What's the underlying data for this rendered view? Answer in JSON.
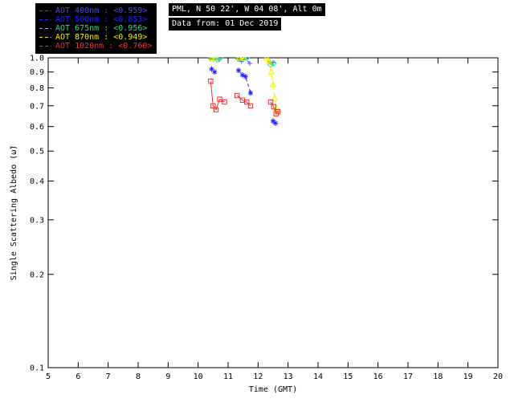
{
  "header": {
    "station": "PML, N 50 22', W 04 08', Alt 0m",
    "date": "Data from: 01 Dec 2019"
  },
  "legend": {
    "items": [
      {
        "label": "AOT  400nm : <0.959>",
        "color": "#4a4ae0",
        "wavelength": "400nm",
        "mean": 0.959
      },
      {
        "label": "AOT  500nm : <0.853>",
        "color": "#2424ff",
        "wavelength": "500nm",
        "mean": 0.853
      },
      {
        "label": "AOT  675nm : <0.956>",
        "color": "#2edc86",
        "wavelength": "675nm",
        "mean": 0.956
      },
      {
        "label": "AOT  870nm : <0.949>",
        "color": "#f0f000",
        "wavelength": "870nm",
        "mean": 0.949
      },
      {
        "label": "AOT 1020nm : <0.760>",
        "color": "#f03030",
        "wavelength": "1020nm",
        "mean": 0.76
      }
    ]
  },
  "chart_data": {
    "type": "line",
    "title": "",
    "xlabel": "Time (GMT)",
    "ylabel": "Single Scattering Albedo (ω̃)",
    "xlim": [
      5,
      20
    ],
    "ylim": [
      0.1,
      1.0
    ],
    "yscale": "log",
    "grid": false,
    "axis_color": "#000000",
    "background": "#ffffff",
    "x_ticks": [
      5,
      6,
      7,
      8,
      9,
      10,
      11,
      12,
      13,
      14,
      15,
      16,
      17,
      18,
      19,
      20
    ],
    "y_ticks": [
      1.0,
      0.9,
      0.8,
      0.7,
      0.6,
      0.5,
      0.4,
      0.3,
      0.2,
      0.1
    ],
    "series": [
      {
        "name": "AOT 400nm",
        "key": "aot-400nm",
        "mean": 0.959,
        "color": "#4a4ae0",
        "marker": "plus",
        "dash": "4,3",
        "points": [
          [
            10.4,
            0.995
          ],
          [
            10.5,
            0.99
          ],
          [
            10.58,
            1.0
          ],
          [
            10.7,
            0.985
          ],
          [
            11.32,
            0.99
          ],
          [
            11.45,
            0.975
          ],
          [
            11.58,
            0.995
          ],
          [
            11.72,
            0.96
          ],
          [
            12.4,
            0.97
          ],
          [
            12.5,
            0.965
          ]
        ]
      },
      {
        "name": "AOT 500nm",
        "key": "aot-500nm",
        "mean": 0.853,
        "color": "#2424ff",
        "marker": "asterisk",
        "dash": "4,3",
        "points": [
          [
            10.45,
            0.92
          ],
          [
            10.55,
            0.9
          ],
          [
            11.35,
            0.91
          ],
          [
            11.48,
            0.88
          ],
          [
            11.58,
            0.87
          ],
          [
            11.75,
            0.77
          ],
          [
            12.5,
            0.625
          ],
          [
            12.58,
            0.615
          ]
        ]
      },
      {
        "name": "AOT 675nm",
        "key": "aot-675nm",
        "mean": 0.956,
        "color": "#2edc86",
        "marker": "diamond",
        "dash": "4,3",
        "points": [
          [
            10.42,
            1.0
          ],
          [
            10.52,
            0.995
          ],
          [
            10.62,
            0.99
          ],
          [
            10.72,
            1.0
          ],
          [
            11.35,
            0.995
          ],
          [
            11.5,
            0.99
          ],
          [
            11.62,
            1.0
          ],
          [
            12.42,
            0.95
          ],
          [
            12.52,
            0.96
          ]
        ]
      },
      {
        "name": "AOT 870nm",
        "key": "aot-870nm",
        "mean": 0.949,
        "color": "#f0f000",
        "marker": "triangle",
        "dash": "7,4",
        "points": [
          [
            10.45,
            1.0
          ],
          [
            10.58,
            0.995
          ],
          [
            11.38,
            1.0
          ],
          [
            11.55,
            0.995
          ],
          [
            12.28,
            1.0
          ],
          [
            12.36,
            0.975
          ],
          [
            12.44,
            0.9
          ],
          [
            12.5,
            0.82
          ],
          [
            12.56,
            0.74
          ],
          [
            12.62,
            0.69
          ],
          [
            12.66,
            0.67
          ]
        ]
      },
      {
        "name": "AOT 1020nm",
        "key": "aot-1020nm",
        "mean": 0.76,
        "color": "#f03030",
        "marker": "square",
        "dash": "",
        "points": [
          [
            10.42,
            0.84
          ],
          [
            10.5,
            0.7
          ],
          [
            10.6,
            0.68
          ],
          [
            10.72,
            0.735
          ],
          [
            10.88,
            0.72
          ],
          [
            11.3,
            0.755
          ],
          [
            11.48,
            0.73
          ],
          [
            11.62,
            0.72
          ],
          [
            11.75,
            0.7
          ],
          [
            12.42,
            0.72
          ],
          [
            12.52,
            0.695
          ],
          [
            12.6,
            0.66
          ],
          [
            12.66,
            0.67
          ]
        ]
      }
    ]
  }
}
